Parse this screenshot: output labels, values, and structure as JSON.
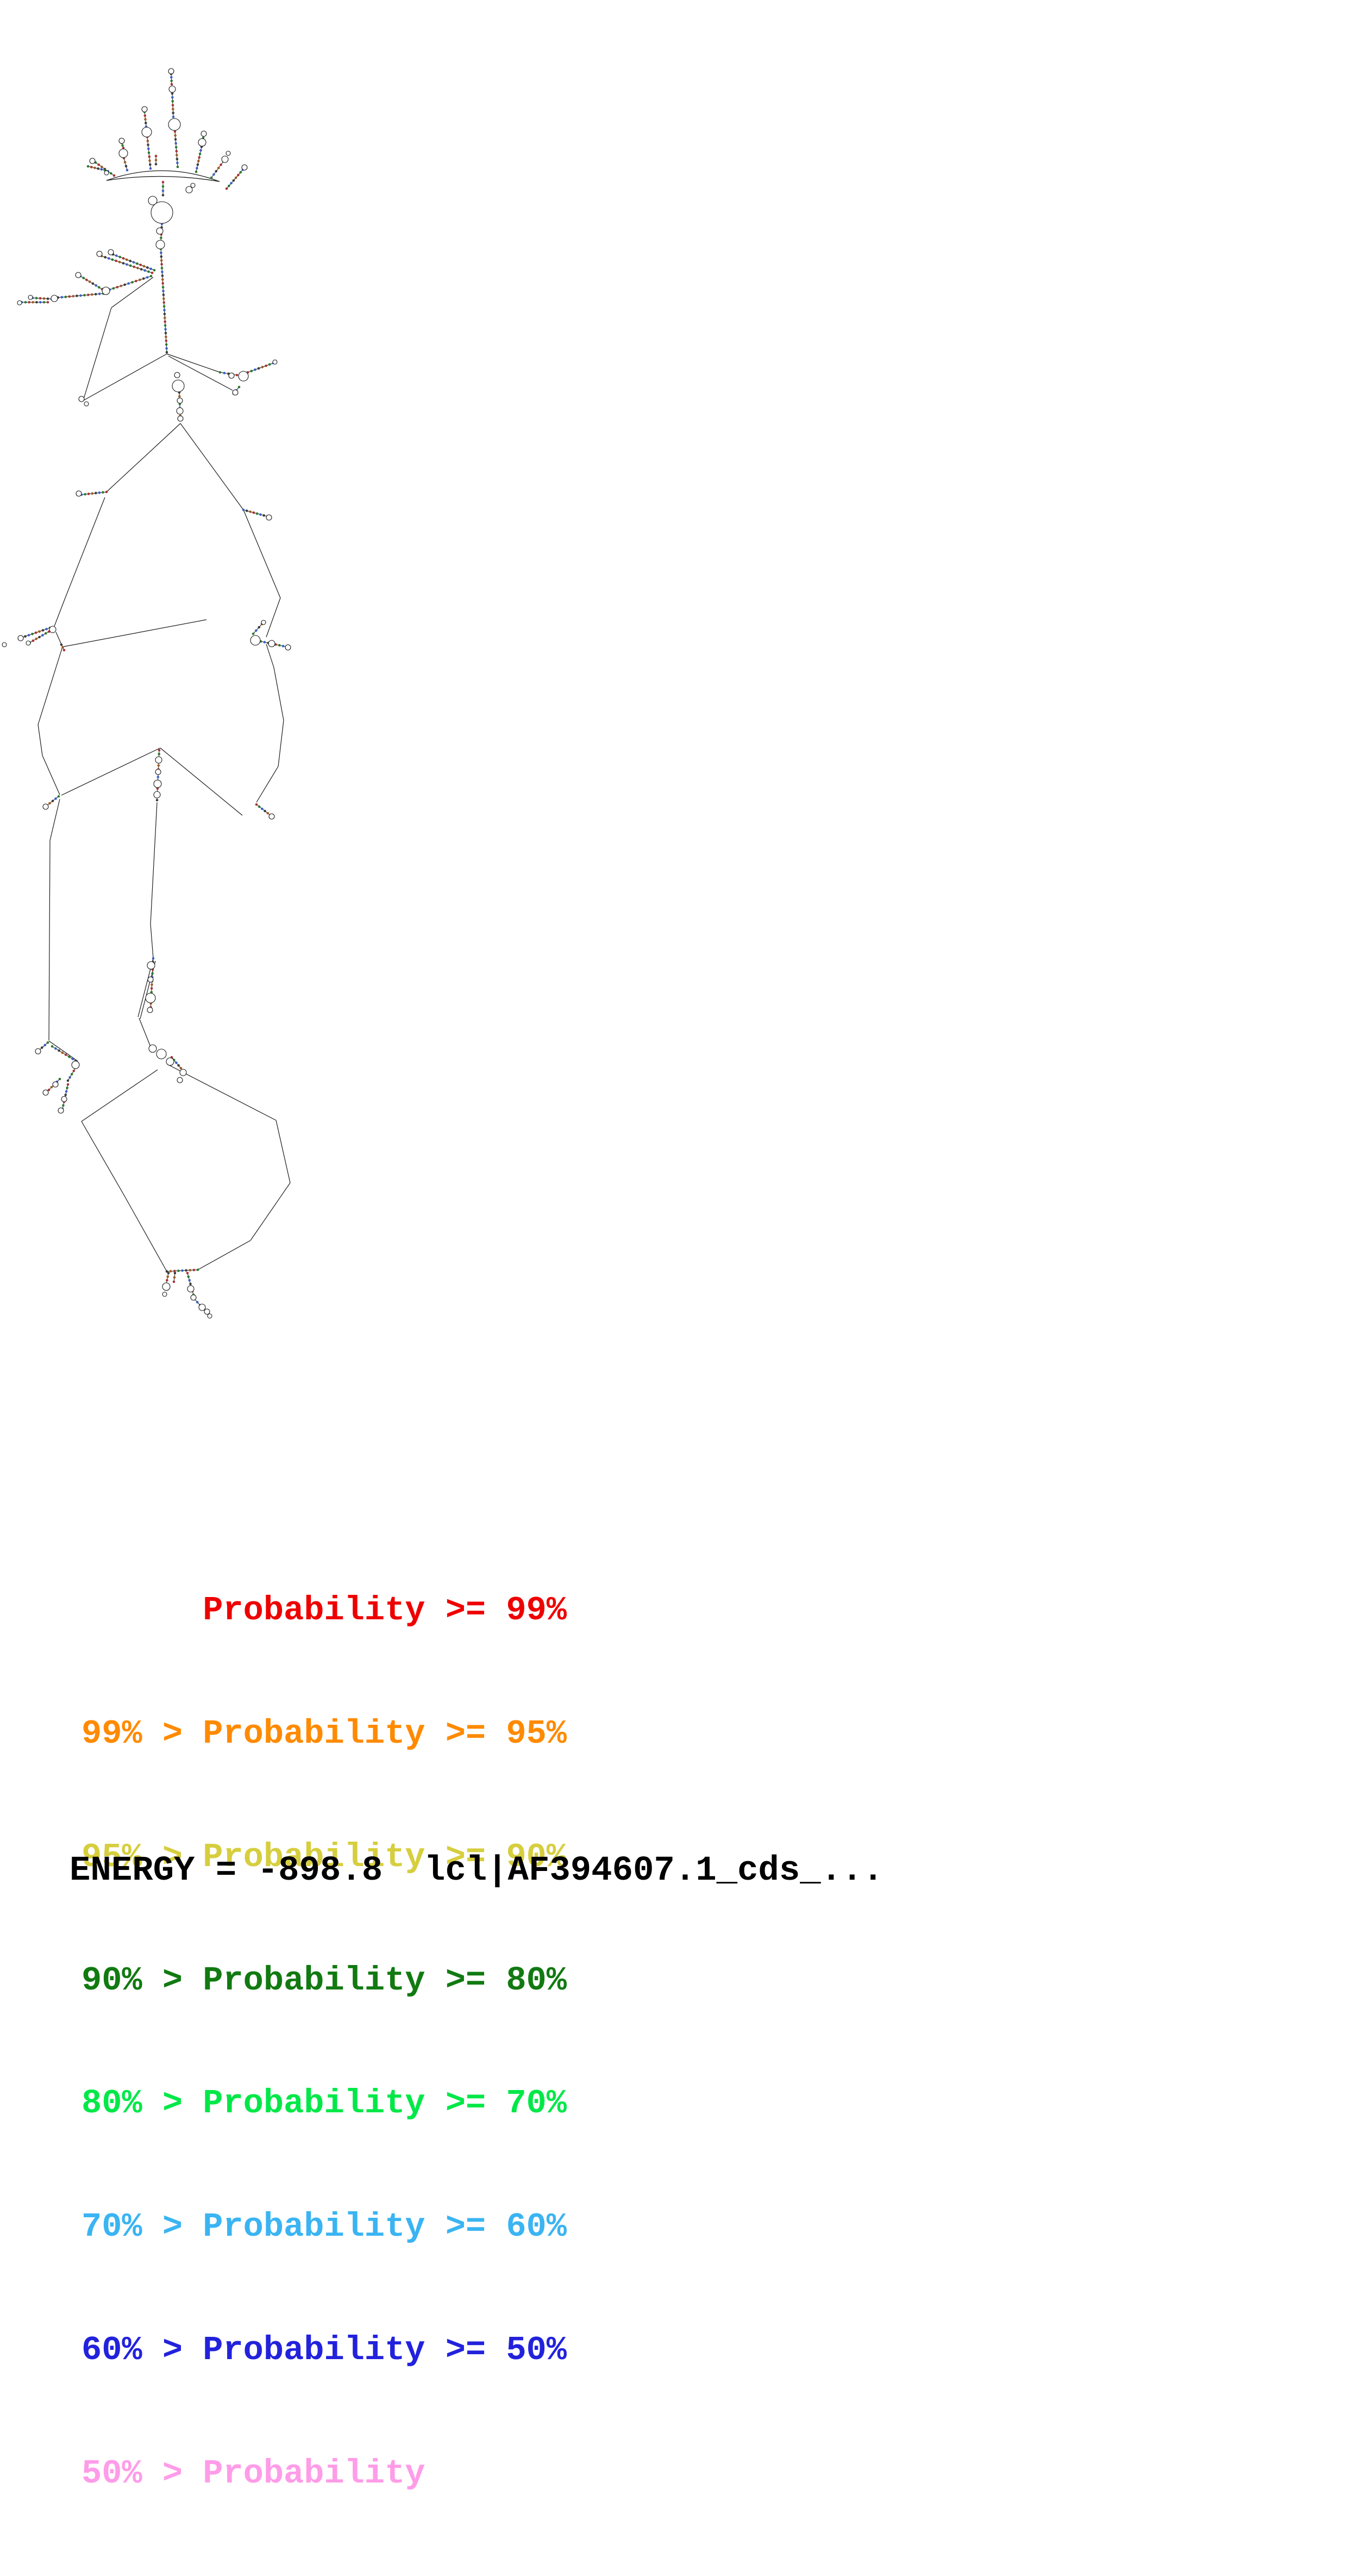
{
  "figure": {
    "kind": "rna-secondary-structure-probability-plot",
    "background": "#ffffff"
  },
  "legend": {
    "rows": [
      {
        "text": "      Probability >= 99%",
        "color": "#ee0000"
      },
      {
        "text": "99% > Probability >= 95%",
        "color": "#ff8a00"
      },
      {
        "text": "95% > Probability >= 90%",
        "color": "#d6ce3e"
      },
      {
        "text": "90% > Probability >= 80%",
        "color": "#117a11"
      },
      {
        "text": "80% > Probability >= 70%",
        "color": "#00e848"
      },
      {
        "text": "70% > Probability >= 60%",
        "color": "#3ab4f2"
      },
      {
        "text": "60% > Probability >= 50%",
        "color": "#2222dd"
      },
      {
        "text": "50% > Probability",
        "color": "#ff9ce8"
      }
    ]
  },
  "footer": {
    "energy_text": "ENERGY = -898.8  lcl|AF394607.1_cds_..."
  },
  "diagram": {
    "stroke": "#1b1b1b",
    "palette": [
      "#aa3333",
      "#2b7a2b",
      "#3a5fc8",
      "#3c3c3c",
      "#a05a20"
    ],
    "curves": [
      "M196 332 Q300 295 404 334",
      "M196 332 Q300 316 404 334"
    ],
    "lines": [
      [
        282,
        510,
        205,
        566
      ],
      [
        205,
        566,
        153,
        737
      ],
      [
        153,
        737,
        307,
        651
      ],
      [
        332,
        779,
        196,
        905
      ],
      [
        332,
        779,
        448,
        938
      ],
      [
        193,
        915,
        120,
        1100
      ],
      [
        120,
        1100,
        100,
        1152
      ],
      [
        103,
        1163,
        115,
        1190
      ],
      [
        115,
        1190,
        70,
        1333
      ],
      [
        70,
        1333,
        78,
        1390
      ],
      [
        78,
        1390,
        110,
        1462
      ],
      [
        115,
        1190,
        380,
        1140
      ],
      [
        448,
        938,
        516,
        1100
      ],
      [
        516,
        1100,
        490,
        1172
      ],
      [
        490,
        1185,
        504,
        1228
      ],
      [
        504,
        1228,
        522,
        1325
      ],
      [
        522,
        1325,
        512,
        1410
      ],
      [
        512,
        1410,
        472,
        1476
      ],
      [
        113,
        1463,
        295,
        1376
      ],
      [
        446,
        1500,
        295,
        1376
      ],
      [
        289,
        1476,
        277,
        1700
      ],
      [
        110,
        1470,
        92,
        1546
      ],
      [
        92,
        1546,
        90,
        1914
      ],
      [
        277,
        1700,
        282,
        1763
      ],
      [
        282,
        1763,
        254,
        1871
      ],
      [
        286,
        1768,
        258,
        1874
      ],
      [
        256,
        1873,
        278,
        1928
      ],
      [
        290,
        1968,
        150,
        2063
      ],
      [
        150,
        2063,
        229,
        2200
      ],
      [
        229,
        2200,
        307,
        2339
      ],
      [
        312,
        1960,
        508,
        2061
      ],
      [
        508,
        2061,
        534,
        2176
      ],
      [
        534,
        2176,
        461,
        2282
      ],
      [
        461,
        2282,
        364,
        2336
      ],
      [
        307,
        651,
        405,
        685
      ],
      [
        310,
        655,
        428,
        718
      ],
      [
        90,
        1915,
        143,
        1952
      ]
    ],
    "stems": [
      [
        210,
        323,
        176,
        299,
        0
      ],
      [
        193,
        313,
        162,
        306,
        1
      ],
      [
        234,
        313,
        228,
        291,
        2
      ],
      [
        227,
        272,
        224,
        263,
        0
      ],
      [
        277,
        310,
        271,
        252,
        2
      ],
      [
        269,
        233,
        266,
        206,
        2
      ],
      [
        327,
        307,
        322,
        242,
        1
      ],
      [
        319,
        215,
        317,
        172,
        2
      ],
      [
        316,
        155,
        315,
        136,
        0
      ],
      [
        361,
        316,
        371,
        270,
        1
      ],
      [
        373,
        258,
        375,
        249,
        0
      ],
      [
        389,
        327,
        411,
        297,
        1
      ],
      [
        417,
        347,
        447,
        312,
        0
      ],
      [
        287,
        302,
        287,
        287,
        3
      ],
      [
        300,
        335,
        300,
        359,
        0
      ],
      [
        298,
        412,
        296,
        444,
        2
      ],
      [
        296,
        458,
        307,
        648,
        1
      ],
      [
        284,
        497,
        208,
        468,
        1
      ],
      [
        280,
        502,
        187,
        471,
        0
      ],
      [
        278,
        508,
        195,
        535,
        1
      ],
      [
        188,
        532,
        148,
        508,
        0
      ],
      [
        190,
        540,
        100,
        548,
        1
      ],
      [
        95,
        550,
        60,
        548,
        2
      ],
      [
        88,
        556,
        40,
        556,
        0
      ],
      [
        405,
        685,
        436,
        690,
        1
      ],
      [
        456,
        685,
        503,
        668,
        0
      ],
      [
        440,
        712,
        430,
        724,
        1
      ],
      [
        330,
        722,
        332,
        772,
        3
      ],
      [
        196,
        905,
        150,
        910,
        0
      ],
      [
        92,
        1155,
        40,
        1173,
        1
      ],
      [
        90,
        1162,
        55,
        1182,
        0
      ],
      [
        113,
        1186,
        118,
        1196,
        3
      ],
      [
        480,
        1180,
        528,
        1190,
        1
      ],
      [
        466,
        1166,
        482,
        1148,
        1
      ],
      [
        448,
        938,
        492,
        950,
        2
      ],
      [
        108,
        1465,
        86,
        1482,
        1
      ],
      [
        472,
        1480,
        498,
        1500,
        0
      ],
      [
        293,
        1380,
        289,
        1472,
        0
      ],
      [
        282,
        1763,
        277,
        1860,
        2
      ],
      [
        316,
        1945,
        337,
        1970,
        0
      ],
      [
        88,
        1918,
        72,
        1932,
        1
      ],
      [
        96,
        1925,
        140,
        1952,
        1
      ],
      [
        143,
        1958,
        125,
        1988,
        3
      ],
      [
        110,
        1985,
        85,
        2010,
        1
      ],
      [
        125,
        1995,
        115,
        2040,
        0
      ],
      [
        307,
        2339,
        364,
        2336,
        3
      ],
      [
        310,
        2342,
        306,
        2362,
        3
      ],
      [
        322,
        2342,
        320,
        2358,
        3
      ],
      [
        345,
        2342,
        356,
        2382,
        0
      ],
      [
        358,
        2390,
        384,
        2418,
        1
      ]
    ],
    "circles": [
      [
        170,
        296,
        5
      ],
      [
        196,
        318,
        4
      ],
      [
        227,
        282,
        8
      ],
      [
        224,
        259,
        5
      ],
      [
        270,
        243,
        9
      ],
      [
        266,
        201,
        5
      ],
      [
        321,
        229,
        11
      ],
      [
        317,
        164,
        6
      ],
      [
        315,
        131,
        5
      ],
      [
        372,
        262,
        7
      ],
      [
        375,
        246,
        5
      ],
      [
        414,
        293,
        6
      ],
      [
        420,
        282,
        4
      ],
      [
        450,
        308,
        5
      ],
      [
        281,
        369,
        8
      ],
      [
        298,
        391,
        20
      ],
      [
        348,
        349,
        6
      ],
      [
        355,
        341,
        4
      ],
      [
        294,
        425,
        6
      ],
      [
        295,
        450,
        8
      ],
      [
        204,
        464,
        5
      ],
      [
        183,
        467,
        5
      ],
      [
        195,
        535,
        7
      ],
      [
        144,
        506,
        5
      ],
      [
        100,
        549,
        6
      ],
      [
        56,
        547,
        4
      ],
      [
        36,
        557,
        4
      ],
      [
        150,
        734,
        5
      ],
      [
        159,
        743,
        4
      ],
      [
        426,
        691,
        5
      ],
      [
        448,
        692,
        9
      ],
      [
        506,
        666,
        4
      ],
      [
        433,
        722,
        5
      ],
      [
        326,
        690,
        5
      ],
      [
        328,
        710,
        11
      ],
      [
        331,
        737,
        5
      ],
      [
        331,
        756,
        6
      ],
      [
        332,
        770,
        5
      ],
      [
        145,
        908,
        5
      ],
      [
        495,
        952,
        5
      ],
      [
        97,
        1158,
        6
      ],
      [
        38,
        1174,
        5
      ],
      [
        52,
        1183,
        4
      ],
      [
        8,
        1186,
        4
      ],
      [
        470,
        1178,
        9
      ],
      [
        500,
        1184,
        6
      ],
      [
        530,
        1191,
        5
      ],
      [
        485,
        1145,
        4
      ],
      [
        84,
        1484,
        5
      ],
      [
        500,
        1502,
        5
      ],
      [
        292,
        1398,
        6
      ],
      [
        291,
        1420,
        5
      ],
      [
        290,
        1442,
        7
      ],
      [
        289,
        1462,
        6
      ],
      [
        278,
        1776,
        7
      ],
      [
        277,
        1802,
        5
      ],
      [
        277,
        1836,
        9
      ],
      [
        276,
        1858,
        5
      ],
      [
        281,
        1929,
        7
      ],
      [
        297,
        1939,
        9
      ],
      [
        313,
        1953,
        7
      ],
      [
        337,
        1973,
        6
      ],
      [
        331,
        1987,
        5
      ],
      [
        139,
        1959,
        7
      ],
      [
        102,
        1995,
        5
      ],
      [
        84,
        2010,
        5
      ],
      [
        118,
        2022,
        5
      ],
      [
        112,
        2043,
        5
      ],
      [
        70,
        1934,
        5
      ],
      [
        306,
        2367,
        7
      ],
      [
        303,
        2381,
        4
      ],
      [
        351,
        2371,
        6
      ],
      [
        356,
        2387,
        5
      ],
      [
        372,
        2405,
        6
      ],
      [
        381,
        2413,
        5
      ],
      [
        386,
        2421,
        4
      ]
    ]
  }
}
